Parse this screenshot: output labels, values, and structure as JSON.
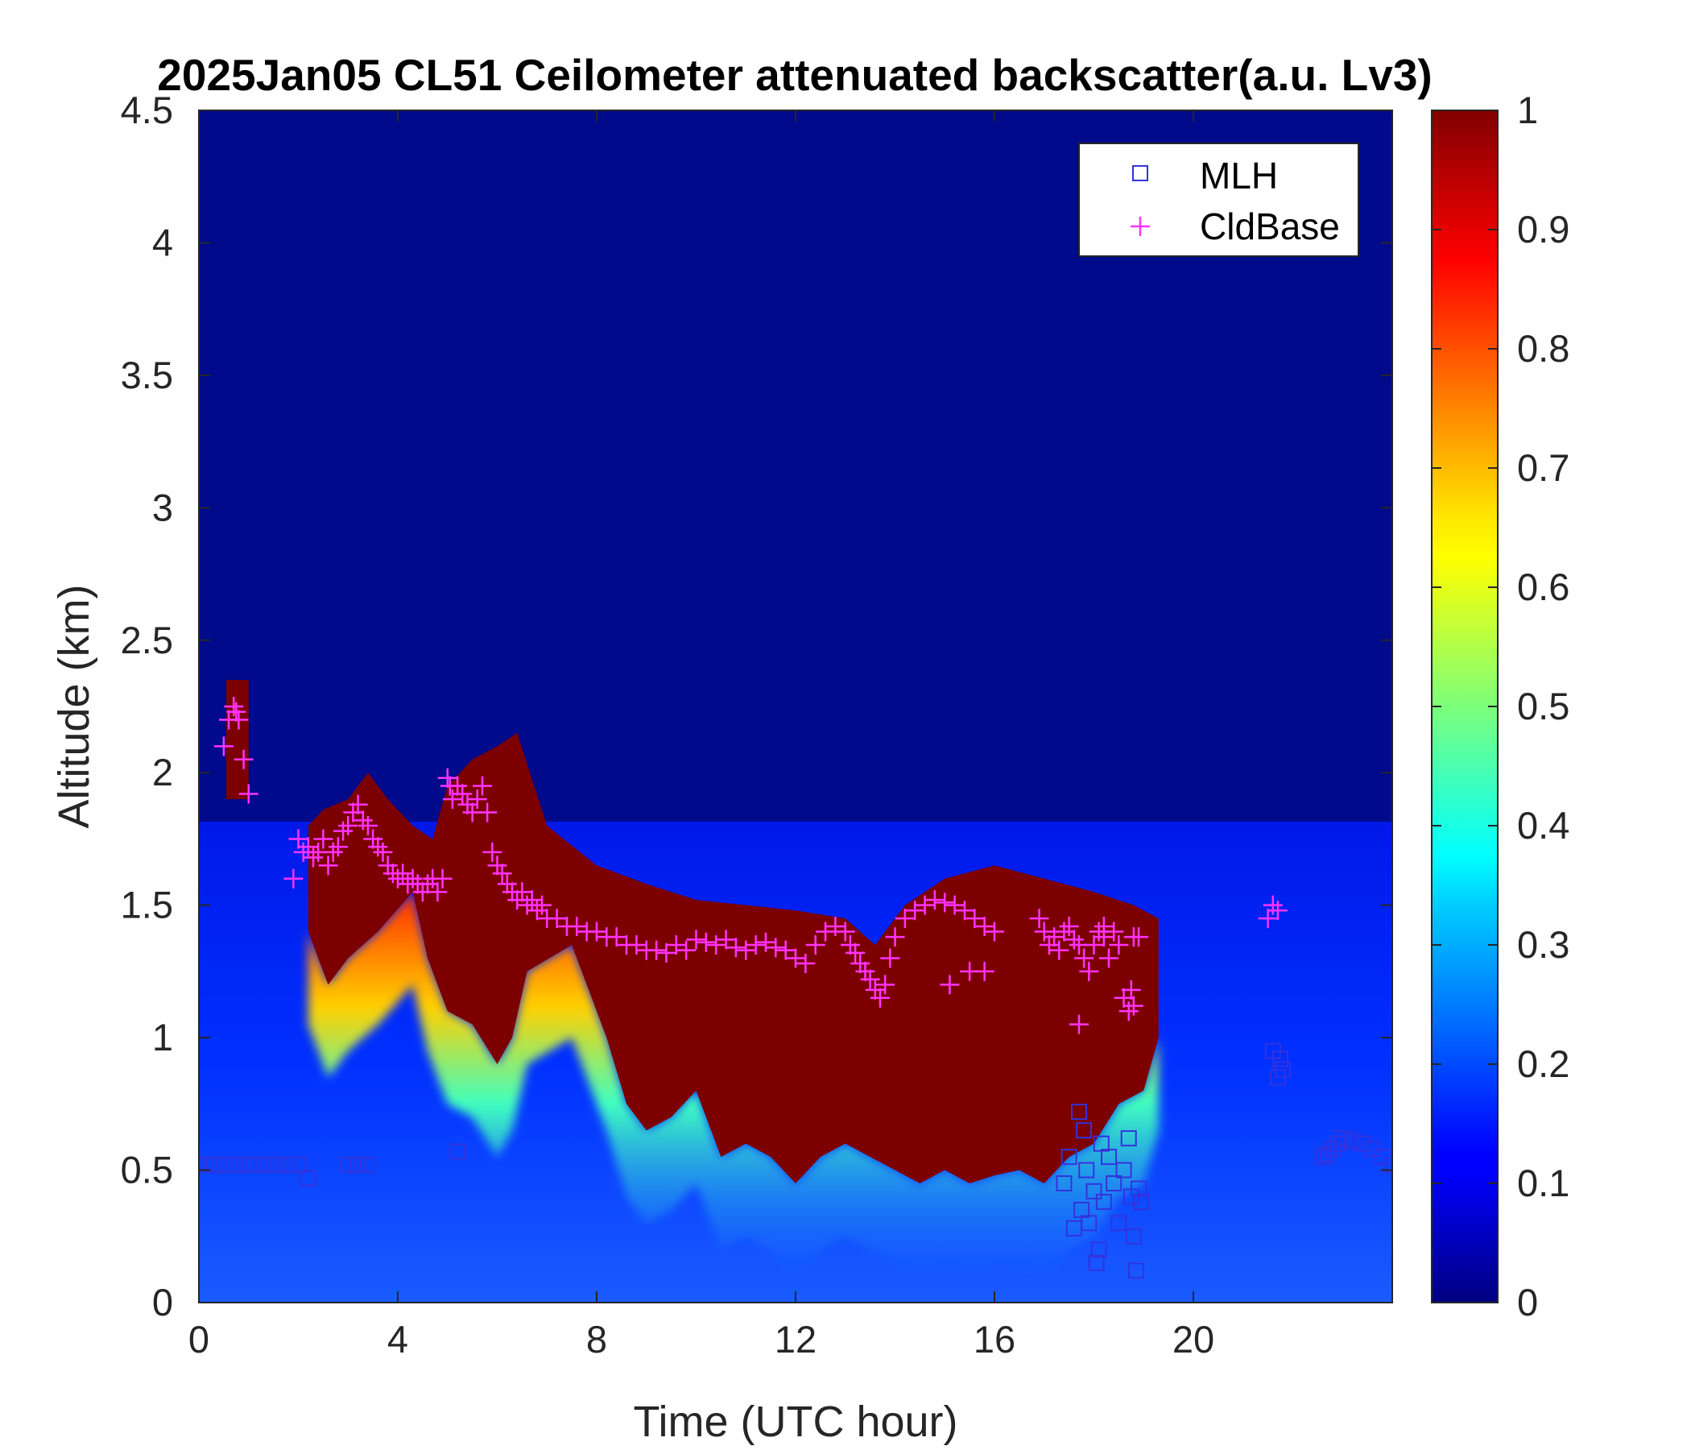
{
  "chart_data": {
    "type": "heatmap",
    "title": "2025Jan05 CL51 Ceilometer attenuated backscatter(a.u. Lv3)",
    "xlabel": "Time (UTC hour)",
    "ylabel": "Altitude (km)",
    "xlim": [
      0,
      24
    ],
    "ylim": [
      0,
      4.5
    ],
    "x_ticks": [
      "0",
      "4",
      "8",
      "12",
      "16",
      "20"
    ],
    "x_tick_values": [
      0,
      4,
      8,
      12,
      16,
      20
    ],
    "y_ticks": [
      "0",
      "0.5",
      "1",
      "1.5",
      "2",
      "2.5",
      "3",
      "3.5",
      "4",
      "4.5"
    ],
    "y_tick_values": [
      0,
      0.5,
      1,
      1.5,
      2,
      2.5,
      3,
      3.5,
      4,
      4.5
    ],
    "colorbar": {
      "colormap": "jet",
      "range": [
        0,
        1
      ],
      "ticks": [
        "0",
        "0.1",
        "0.2",
        "0.3",
        "0.4",
        "0.5",
        "0.6",
        "0.7",
        "0.8",
        "0.9",
        "1"
      ],
      "tick_values": [
        0,
        0.1,
        0.2,
        0.3,
        0.4,
        0.5,
        0.6,
        0.7,
        0.8,
        0.9,
        1
      ]
    },
    "legend": {
      "placement": "top-right",
      "entries": [
        {
          "label": "MLH",
          "marker": "square",
          "color": "#3333dd"
        },
        {
          "label": "CldBase",
          "marker": "plus",
          "color": "#ff33ff"
        }
      ]
    },
    "cloud_layer": {
      "description_value": "backscatter >= 1 (saturated)",
      "top": [
        [
          2.2,
          1.8
        ],
        [
          2.5,
          1.86
        ],
        [
          3.0,
          1.9
        ],
        [
          3.4,
          2.0
        ],
        [
          3.8,
          1.9
        ],
        [
          4.3,
          1.8
        ],
        [
          4.7,
          1.75
        ],
        [
          5.0,
          1.95
        ],
        [
          5.5,
          2.05
        ],
        [
          6.0,
          2.1
        ],
        [
          6.4,
          2.15
        ],
        [
          7.0,
          1.8
        ],
        [
          8.0,
          1.65
        ],
        [
          9.0,
          1.58
        ],
        [
          10.0,
          1.52
        ],
        [
          11.0,
          1.5
        ],
        [
          12.0,
          1.48
        ],
        [
          13.0,
          1.45
        ],
        [
          13.6,
          1.35
        ],
        [
          14.2,
          1.5
        ],
        [
          15.0,
          1.6
        ],
        [
          16.0,
          1.65
        ],
        [
          17.0,
          1.6
        ],
        [
          18.0,
          1.55
        ],
        [
          18.8,
          1.5
        ],
        [
          19.3,
          1.45
        ]
      ],
      "base": [
        [
          2.2,
          1.4
        ],
        [
          2.6,
          1.2
        ],
        [
          3.0,
          1.3
        ],
        [
          3.6,
          1.4
        ],
        [
          4.3,
          1.55
        ],
        [
          4.6,
          1.3
        ],
        [
          5.0,
          1.1
        ],
        [
          5.5,
          1.05
        ],
        [
          6.0,
          0.9
        ],
        [
          6.3,
          1.0
        ],
        [
          6.6,
          1.25
        ],
        [
          7.5,
          1.35
        ],
        [
          8.2,
          1.0
        ],
        [
          8.6,
          0.75
        ],
        [
          9.0,
          0.65
        ],
        [
          9.5,
          0.7
        ],
        [
          10.0,
          0.8
        ],
        [
          10.5,
          0.55
        ],
        [
          11.0,
          0.6
        ],
        [
          11.5,
          0.55
        ],
        [
          12.0,
          0.45
        ],
        [
          12.5,
          0.55
        ],
        [
          13.0,
          0.6
        ],
        [
          13.5,
          0.55
        ],
        [
          14.0,
          0.5
        ],
        [
          14.5,
          0.45
        ],
        [
          15.0,
          0.5
        ],
        [
          15.5,
          0.45
        ],
        [
          16.0,
          0.48
        ],
        [
          16.5,
          0.5
        ],
        [
          17.0,
          0.45
        ],
        [
          17.5,
          0.55
        ],
        [
          18.0,
          0.6
        ],
        [
          18.5,
          0.75
        ],
        [
          19.0,
          0.8
        ],
        [
          19.3,
          1.0
        ]
      ]
    },
    "early_cloud": {
      "x_range": [
        0.55,
        1.0
      ],
      "top": 2.35,
      "base": 1.9
    },
    "series": [
      {
        "name": "CldBase",
        "marker": "plus",
        "color": "#ff33ff",
        "x": [
          0.5,
          0.6,
          0.7,
          0.75,
          0.8,
          0.9,
          1.0,
          1.9,
          2.0,
          2.1,
          2.2,
          2.3,
          2.4,
          2.5,
          2.6,
          2.7,
          2.8,
          2.9,
          3.0,
          3.1,
          3.2,
          3.3,
          3.4,
          3.5,
          3.6,
          3.7,
          3.8,
          3.9,
          4.0,
          4.1,
          4.2,
          4.3,
          4.4,
          4.5,
          4.6,
          4.7,
          4.8,
          4.9,
          5.0,
          5.05,
          5.1,
          5.2,
          5.3,
          5.4,
          5.5,
          5.6,
          5.7,
          5.8,
          5.9,
          6.0,
          6.1,
          6.2,
          6.3,
          6.4,
          6.5,
          6.6,
          6.7,
          6.8,
          6.9,
          7.0,
          7.2,
          7.4,
          7.6,
          7.8,
          8.0,
          8.2,
          8.4,
          8.6,
          8.8,
          9.0,
          9.2,
          9.4,
          9.6,
          9.8,
          10.0,
          10.2,
          10.4,
          10.6,
          10.8,
          11.0,
          11.2,
          11.4,
          11.6,
          11.8,
          12.0,
          12.2,
          12.4,
          12.6,
          12.8,
          13.0,
          13.1,
          13.2,
          13.3,
          13.4,
          13.5,
          13.6,
          13.7,
          13.8,
          13.9,
          14.0,
          14.2,
          14.4,
          14.6,
          14.8,
          15.0,
          15.2,
          15.4,
          15.6,
          15.8,
          16.0,
          15.1,
          15.5,
          15.8,
          16.9,
          17.0,
          17.1,
          17.2,
          17.3,
          17.4,
          17.5,
          17.6,
          17.7,
          17.8,
          17.9,
          18.0,
          18.1,
          18.2,
          18.3,
          18.4,
          18.5,
          18.6,
          18.7,
          18.75,
          18.8,
          18.9,
          17.7,
          18.2,
          18.8,
          21.5,
          21.6,
          21.7
        ],
        "y": [
          2.1,
          2.2,
          2.25,
          2.23,
          2.2,
          2.05,
          1.92,
          1.6,
          1.75,
          1.7,
          1.72,
          1.68,
          1.7,
          1.75,
          1.65,
          1.7,
          1.72,
          1.78,
          1.8,
          1.85,
          1.88,
          1.82,
          1.8,
          1.75,
          1.72,
          1.7,
          1.65,
          1.62,
          1.6,
          1.62,
          1.58,
          1.6,
          1.58,
          1.55,
          1.58,
          1.6,
          1.55,
          1.6,
          1.98,
          1.95,
          1.9,
          1.95,
          1.92,
          1.88,
          1.85,
          1.9,
          1.95,
          1.85,
          1.7,
          1.65,
          1.62,
          1.58,
          1.55,
          1.52,
          1.55,
          1.5,
          1.52,
          1.48,
          1.5,
          1.45,
          1.45,
          1.42,
          1.42,
          1.4,
          1.4,
          1.38,
          1.38,
          1.35,
          1.35,
          1.33,
          1.33,
          1.32,
          1.35,
          1.33,
          1.37,
          1.36,
          1.35,
          1.37,
          1.34,
          1.33,
          1.35,
          1.36,
          1.34,
          1.33,
          1.3,
          1.28,
          1.35,
          1.4,
          1.42,
          1.4,
          1.35,
          1.32,
          1.28,
          1.25,
          1.22,
          1.18,
          1.15,
          1.2,
          1.3,
          1.38,
          1.45,
          1.48,
          1.5,
          1.52,
          1.51,
          1.5,
          1.48,
          1.45,
          1.42,
          1.4,
          1.2,
          1.25,
          1.25,
          1.45,
          1.4,
          1.35,
          1.38,
          1.33,
          1.4,
          1.42,
          1.37,
          1.35,
          1.3,
          1.25,
          1.35,
          1.4,
          1.38,
          1.3,
          1.4,
          1.35,
          1.15,
          1.1,
          1.18,
          1.12,
          1.38,
          1.05,
          1.42,
          1.38,
          1.45,
          1.5,
          1.48
        ],
        "stroke_weight": "normal"
      },
      {
        "name": "MLH",
        "marker": "square",
        "color": "#3333dd",
        "x": [
          0.0,
          0.2,
          0.4,
          0.6,
          0.8,
          1.0,
          1.2,
          1.4,
          1.6,
          1.8,
          2.0,
          2.2,
          3.0,
          3.2,
          3.4,
          5.2,
          17.4,
          17.5,
          17.6,
          17.7,
          17.75,
          17.8,
          17.85,
          17.9,
          18.0,
          18.05,
          18.1,
          18.15,
          18.2,
          18.3,
          18.4,
          18.5,
          18.6,
          18.7,
          18.75,
          18.8,
          18.85,
          18.9,
          18.95,
          21.6,
          21.7,
          21.75,
          21.8,
          22.6,
          22.7,
          22.8,
          22.9,
          23.0,
          23.2,
          23.4,
          23.6,
          23.8,
          24.0
        ],
        "y": [
          0.52,
          0.52,
          0.52,
          0.52,
          0.52,
          0.52,
          0.52,
          0.52,
          0.52,
          0.52,
          0.52,
          0.47,
          0.52,
          0.52,
          0.52,
          0.57,
          0.45,
          0.55,
          0.28,
          0.72,
          0.35,
          0.65,
          0.5,
          0.3,
          0.42,
          0.15,
          0.2,
          0.6,
          0.38,
          0.55,
          0.45,
          0.3,
          0.5,
          0.62,
          0.4,
          0.25,
          0.12,
          0.43,
          0.38,
          0.95,
          0.85,
          0.92,
          0.88,
          0.55,
          0.56,
          0.58,
          0.6,
          0.62,
          0.61,
          0.6,
          0.58,
          0.55,
          0.52
        ]
      }
    ]
  }
}
